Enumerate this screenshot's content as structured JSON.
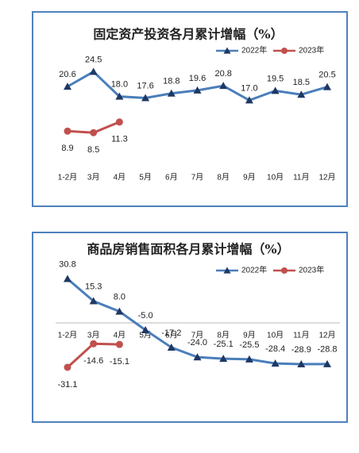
{
  "chart_data": [
    {
      "type": "line",
      "title": "固定资产投资各月累计增幅（%）",
      "categories": [
        "1-2月",
        "3月",
        "4月",
        "5月",
        "6月",
        "7月",
        "8月",
        "9月",
        "10月",
        "11月",
        "12月"
      ],
      "ylim": [
        0,
        30
      ],
      "series": [
        {
          "name": "2022年",
          "color": "#4a7ebb",
          "marker": "triangle",
          "values": [
            20.6,
            24.5,
            18.0,
            17.6,
            18.8,
            19.6,
            20.8,
            17.0,
            19.5,
            18.5,
            20.5
          ],
          "value_labels": [
            "20.6",
            "24.5",
            "18.0",
            "17.6",
            "18.8",
            "19.6",
            "20.8",
            "17.0",
            "19.5",
            "18.5",
            "20.5"
          ]
        },
        {
          "name": "2023年",
          "color": "#c0504d",
          "marker": "circle",
          "values": [
            8.9,
            8.5,
            11.3,
            null,
            null,
            null,
            null,
            null,
            null,
            null,
            null
          ],
          "value_labels": [
            "8.9",
            "8.5",
            "11.3",
            null,
            null,
            null,
            null,
            null,
            null,
            null,
            null
          ]
        }
      ]
    },
    {
      "type": "line",
      "title": "商品房销售面积各月累计增幅（%）",
      "categories": [
        "1-2月",
        "3月",
        "4月",
        "5月",
        "6月",
        "7月",
        "8月",
        "9月",
        "10月",
        "11月",
        "12月"
      ],
      "ylim": [
        -40,
        40
      ],
      "series": [
        {
          "name": "2022年",
          "color": "#4a7ebb",
          "marker": "triangle",
          "values": [
            30.8,
            15.3,
            8.0,
            -5.0,
            -17.2,
            -24.0,
            -25.1,
            -25.5,
            -28.4,
            -28.9,
            -28.8
          ],
          "value_labels": [
            "30.8",
            "15.3",
            "8.0",
            "-5.0",
            "-17.2",
            "-24.0",
            "-25.1",
            "-25.5",
            "-28.4",
            "-28.9",
            "-28.8"
          ]
        },
        {
          "name": "2023年",
          "color": "#c0504d",
          "marker": "circle",
          "values": [
            -31.1,
            -14.6,
            -15.1,
            null,
            null,
            null,
            null,
            null,
            null,
            null,
            null
          ],
          "value_labels": [
            "-31.1",
            "-14.6",
            "-15.1",
            null,
            null,
            null,
            null,
            null,
            null,
            null,
            null
          ]
        }
      ]
    }
  ]
}
